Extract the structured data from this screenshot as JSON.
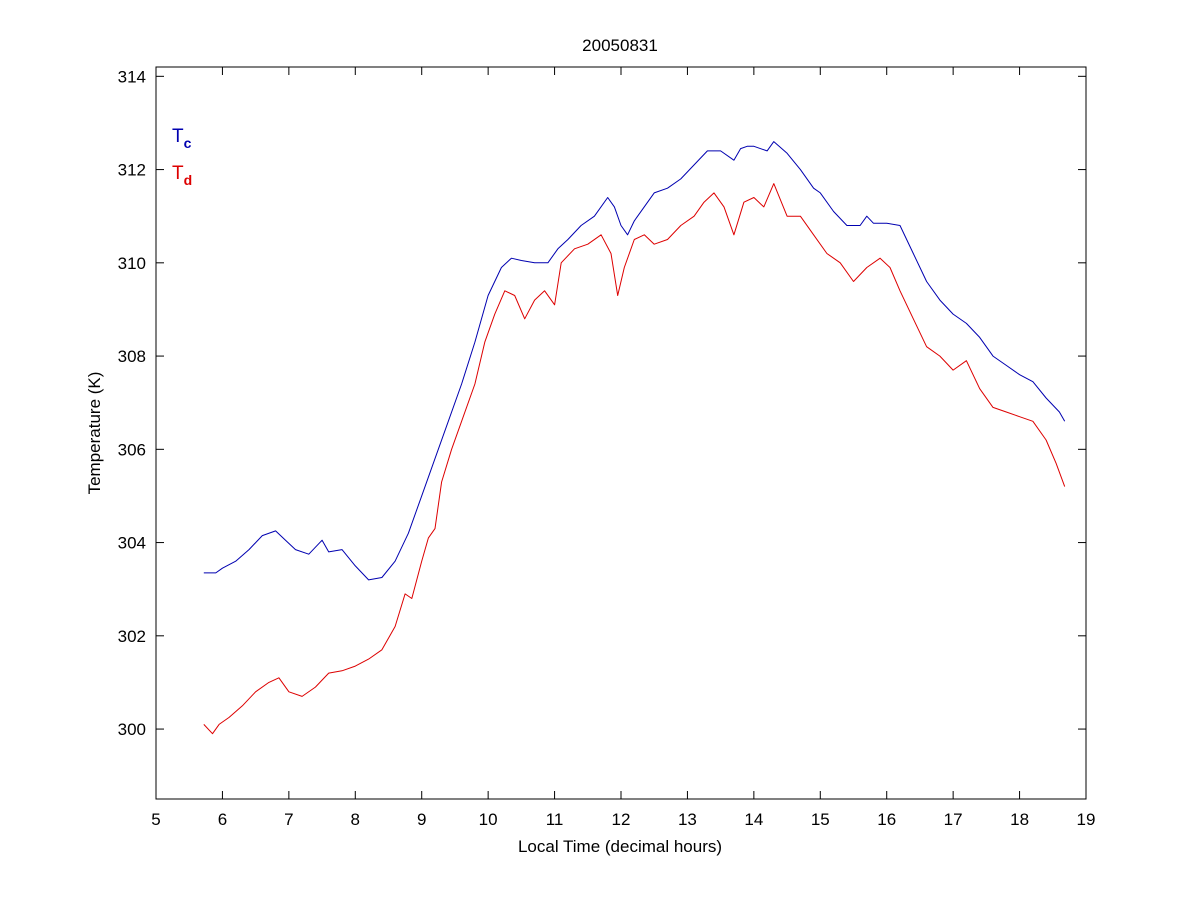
{
  "chart_data": {
    "type": "line",
    "title": "20050831",
    "xlabel": "Local Time (decimal hours)",
    "ylabel": "Temperature (K)",
    "xlim": [
      5,
      19
    ],
    "ylim": [
      298.5,
      314.2
    ],
    "xticks": [
      5,
      6,
      7,
      8,
      9,
      10,
      11,
      12,
      13,
      14,
      15,
      16,
      17,
      18,
      19
    ],
    "yticks": [
      300,
      302,
      304,
      306,
      308,
      310,
      312,
      314
    ],
    "grid": false,
    "legend_position": "top-left",
    "series": [
      {
        "name_main": "T",
        "name_sub": "c",
        "color": "#0000b0",
        "x": [
          5.72,
          5.9,
          6.0,
          6.2,
          6.4,
          6.6,
          6.8,
          6.95,
          7.1,
          7.3,
          7.5,
          7.6,
          7.8,
          8.0,
          8.2,
          8.4,
          8.6,
          8.8,
          9.0,
          9.2,
          9.4,
          9.6,
          9.8,
          10.0,
          10.2,
          10.35,
          10.5,
          10.7,
          10.9,
          11.05,
          11.2,
          11.4,
          11.6,
          11.8,
          11.9,
          12.0,
          12.1,
          12.2,
          12.4,
          12.5,
          12.7,
          12.9,
          13.1,
          13.3,
          13.5,
          13.7,
          13.8,
          13.9,
          14.0,
          14.2,
          14.3,
          14.5,
          14.7,
          14.9,
          15.0,
          15.2,
          15.4,
          15.6,
          15.7,
          15.8,
          16.0,
          16.2,
          16.4,
          16.6,
          16.8,
          17.0,
          17.2,
          17.4,
          17.6,
          17.8,
          18.0,
          18.2,
          18.4,
          18.6,
          18.68
        ],
        "y": [
          303.35,
          303.35,
          303.45,
          303.6,
          303.85,
          304.15,
          304.25,
          304.05,
          303.85,
          303.75,
          304.05,
          303.8,
          303.85,
          303.5,
          303.2,
          303.25,
          303.6,
          304.2,
          305.0,
          305.8,
          306.6,
          307.4,
          308.3,
          309.3,
          309.9,
          310.1,
          310.05,
          310.0,
          310.0,
          310.3,
          310.5,
          310.8,
          311.0,
          311.4,
          311.2,
          310.8,
          310.6,
          310.9,
          311.3,
          311.5,
          311.6,
          311.8,
          312.1,
          312.4,
          312.4,
          312.2,
          312.45,
          312.5,
          312.5,
          312.4,
          312.6,
          312.35,
          312.0,
          311.6,
          311.5,
          311.1,
          310.8,
          310.8,
          311.0,
          310.85,
          310.85,
          310.8,
          310.2,
          309.6,
          309.2,
          308.9,
          308.7,
          308.4,
          308.0,
          307.8,
          307.6,
          307.45,
          307.1,
          306.8,
          306.6
        ]
      },
      {
        "name_main": "T",
        "name_sub": "d",
        "color": "#dd0000",
        "x": [
          5.72,
          5.85,
          5.95,
          6.1,
          6.3,
          6.5,
          6.7,
          6.85,
          7.0,
          7.2,
          7.4,
          7.6,
          7.8,
          8.0,
          8.2,
          8.4,
          8.6,
          8.75,
          8.85,
          9.0,
          9.1,
          9.2,
          9.3,
          9.45,
          9.6,
          9.8,
          9.95,
          10.1,
          10.25,
          10.4,
          10.55,
          10.7,
          10.85,
          11.0,
          11.1,
          11.3,
          11.5,
          11.7,
          11.85,
          11.95,
          12.05,
          12.2,
          12.35,
          12.5,
          12.7,
          12.9,
          13.1,
          13.25,
          13.4,
          13.55,
          13.7,
          13.85,
          14.0,
          14.15,
          14.3,
          14.5,
          14.7,
          14.9,
          15.1,
          15.3,
          15.5,
          15.7,
          15.9,
          16.05,
          16.2,
          16.4,
          16.6,
          16.8,
          17.0,
          17.2,
          17.4,
          17.6,
          17.8,
          18.0,
          18.2,
          18.4,
          18.55,
          18.68
        ],
        "y": [
          300.1,
          299.9,
          300.1,
          300.25,
          300.5,
          300.8,
          301.0,
          301.1,
          300.8,
          300.7,
          300.9,
          301.2,
          301.25,
          301.35,
          301.5,
          301.7,
          302.2,
          302.9,
          302.8,
          303.6,
          304.1,
          304.3,
          305.3,
          306.0,
          306.6,
          307.4,
          308.3,
          308.9,
          309.4,
          309.3,
          308.8,
          309.2,
          309.4,
          309.1,
          310.0,
          310.3,
          310.4,
          310.6,
          310.2,
          309.3,
          309.9,
          310.5,
          310.6,
          310.4,
          310.5,
          310.8,
          311.0,
          311.3,
          311.5,
          311.2,
          310.6,
          311.3,
          311.4,
          311.2,
          311.7,
          311.0,
          311.0,
          310.6,
          310.2,
          310.0,
          309.6,
          309.9,
          310.1,
          309.9,
          309.4,
          308.8,
          308.2,
          308.0,
          307.7,
          307.9,
          307.3,
          306.9,
          306.8,
          306.7,
          306.6,
          306.2,
          305.7,
          305.2
        ]
      }
    ]
  }
}
